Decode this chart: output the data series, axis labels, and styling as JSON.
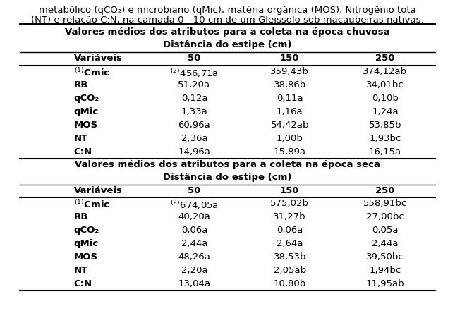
{
  "header_text": [
    "metabólico (qCO₂) e microbiano (qMic); matéria orgânica (MOS), Nitrogênio tota",
    "(NT) e relação C:N, na camada 0 - 10 cm de um Gleissolo sob macaubeiras nativas."
  ],
  "section1_title": "Valores médios dos atributos para a coleta na época chuvosa",
  "section1_subtitle": "Distância do estipe (cm)",
  "section2_title": "Valores médios dos atributos para a coleta na época seca",
  "section2_subtitle": "Distância do estipe (cm)",
  "col_headers": [
    "Variáveis",
    "50",
    "150",
    "250"
  ],
  "rainy_data": [
    [
      "(1)Cmic",
      "(2)456,71a",
      "359,43b",
      "374,12ab"
    ],
    [
      "RB",
      "51,20a",
      "38,86b",
      "34,01bc"
    ],
    [
      "qCO₂",
      "0,12a",
      "0,11a",
      "0,10b"
    ],
    [
      "qMic",
      "1,33a",
      "1,16a",
      "1,24a"
    ],
    [
      "MOS",
      "60,96a",
      "54,42ab",
      "53,85b"
    ],
    [
      "NT",
      "2,36a",
      "1,00b",
      "1,93bc"
    ],
    [
      "C:N",
      "14,96a",
      "15,89a",
      "16,15a"
    ]
  ],
  "dry_data": [
    [
      "(1)Cmic",
      "(2)674,05a",
      "575,02b",
      "558,91bc"
    ],
    [
      "RB",
      "40,20a",
      "31,27b",
      "27,00bc"
    ],
    [
      "qCO₂",
      "0,06a",
      "0,06a",
      "0,05a"
    ],
    [
      "qMic",
      "2,44a",
      "2,64a",
      "2,44a"
    ],
    [
      "MOS",
      "48,26a",
      "38,53b",
      "39,50bc"
    ],
    [
      "NT",
      "2,20a",
      "2,05ab",
      "1,94bc"
    ],
    [
      "C:N",
      "13,04a",
      "10,80b",
      "11,95ab"
    ]
  ],
  "bg_color": "#ffffff",
  "text_color": "#000000",
  "fs": 9.5
}
